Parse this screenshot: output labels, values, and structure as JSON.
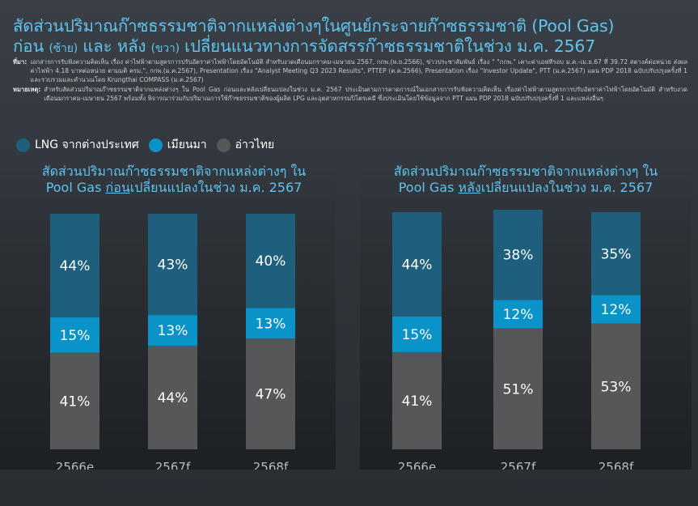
{
  "title": {
    "line1": "สัดส่วนปริมาณก๊าซธรรมชาติจากแหล่งต่างๆในศูนย์กระจายก๊าซธรรมชาติ (Pool Gas)",
    "line2_a": "ก่อน",
    "line2_b": "(ซ้าย)",
    "line2_c": "และ หลัง",
    "line2_d": "(ขวา)",
    "line2_e": "เปลี่ยนแนวทางการจัดสรรก๊าซธรรมชาติในช่วง ม.ค. 2567"
  },
  "notes": {
    "source_label": "ที่มา:",
    "source_text": "เอกสารการรับฟังความคิดเห็น เรื่อง ค่าไฟฟ้าตามสูตรการปรับอัตราค่าไฟฟ้าโดยอัตโนมัติ สำหรับงวดเดือนมกราคม-เมษายน 2567, กกพ.(พ.ย.2566), ข่าวประชาสัมพันธ์ เรื่อง \" \"กกพ.\" เคาะค่าเอฟทีรอบ ม.ค.-เม.ย.67 ที่ 39.72 สตางค์ต่อหน่วย ส่งผลค่าไฟฟ้า 4.18 บาทต่อหน่วย ตามมติ ครม.\", กกพ.(ม.ค.2567), Presentation เรื่อง \"Analyst Meeting Q3 2023 Results\", PTTEP (ต.ค.2566), Presentation เรื่อง \"Investor Update\", PTT (ม.ค.2567) แผน PDP 2018 ฉบับปรับปรุงครั้งที่ 1 และรวบรวมและคำนวณโดย Krungthai COMPASS (ม.ค.2567)",
    "remark_label": "หมายเหตุ:",
    "remark_text": "สำหรับสัดส่วนปริมาณก๊าซธรรมชาติจากแหล่งต่างๆ ใน Pool Gas ก่อนและหลังเปลี่ยนแปลงในช่วง ม.ค. 2567 ประเมินตามการคาดการณ์ในเอกสารการรับฟังความคิดเห็น เรื่องค่าไฟฟ้าตามสูตรการปรับอัตราค่าไฟฟ้าโดยอัตโนมัติ สำหรับงวดเดือนมกราคม-เมษายน 2567 พร้อมทั้ง พิจารณาร่วมกับปริมาณการใช้ก๊าซธรรมชาติของผู้ผลิต LPG และอุตสาหกรรมปิโตรเคมี ซึ่งประเมินโดยใช้ข้อมูลจาก PTT แผน PDP 2018 ฉบับปรับปรุงครั้งที่ 1 และแหล่งอื่นๆ"
  },
  "legend": [
    {
      "label": "LNG จากต่างประเทศ",
      "color": "#1f5f7e"
    },
    {
      "label": "เมียนมา",
      "color": "#0a93c8"
    },
    {
      "label": "อ่าวไทย",
      "color": "#555759"
    }
  ],
  "chart_data": [
    {
      "type": "bar",
      "stacked": true,
      "title_a": "สัดส่วนปริมาณก๊าซธรรมชาติจากแหล่งต่างๆ ใน",
      "title_b": "Pool Gas",
      "title_c": "ก่อน",
      "title_d": "เปลี่ยนแปลงในช่วง ม.ค. 2567",
      "categories": [
        "2566e",
        "2567f",
        "2568f"
      ],
      "series": [
        {
          "name": "อ่าวไทย",
          "color": "#555759",
          "values": [
            41,
            44,
            47
          ],
          "labels": [
            "41%",
            "44%",
            "47%"
          ]
        },
        {
          "name": "เมียนมา",
          "color": "#0a93c8",
          "values": [
            15,
            13,
            13
          ],
          "labels": [
            "15%",
            "13%",
            "13%"
          ]
        },
        {
          "name": "LNG จากต่างประเทศ",
          "color": "#1f5f7e",
          "values": [
            44,
            43,
            40
          ],
          "labels": [
            "44%",
            "43%",
            "40%"
          ]
        }
      ],
      "ylim": [
        0,
        100
      ]
    },
    {
      "type": "bar",
      "stacked": true,
      "title_a": "สัดส่วนปริมาณก๊าซธรรมชาติจากแหล่งต่างๆ ใน",
      "title_b": "Pool Gas",
      "title_c": "หลัง",
      "title_d": "เปลี่ยนแปลงในช่วง ม.ค. 2567",
      "categories": [
        "2566e",
        "2567f",
        "2568f"
      ],
      "series": [
        {
          "name": "อ่าวไทย",
          "color": "#555759",
          "values": [
            41,
            51,
            53
          ],
          "labels": [
            "41%",
            "51%",
            "53%"
          ]
        },
        {
          "name": "เมียนมา",
          "color": "#0a93c8",
          "values": [
            15,
            12,
            12
          ],
          "labels": [
            "15%",
            "12%",
            "12%"
          ]
        },
        {
          "name": "LNG จากต่างประเทศ",
          "color": "#1f5f7e",
          "values": [
            44,
            38,
            35
          ],
          "labels": [
            "44%",
            "38%",
            "35%"
          ]
        }
      ],
      "ylim": [
        0,
        100
      ]
    }
  ]
}
